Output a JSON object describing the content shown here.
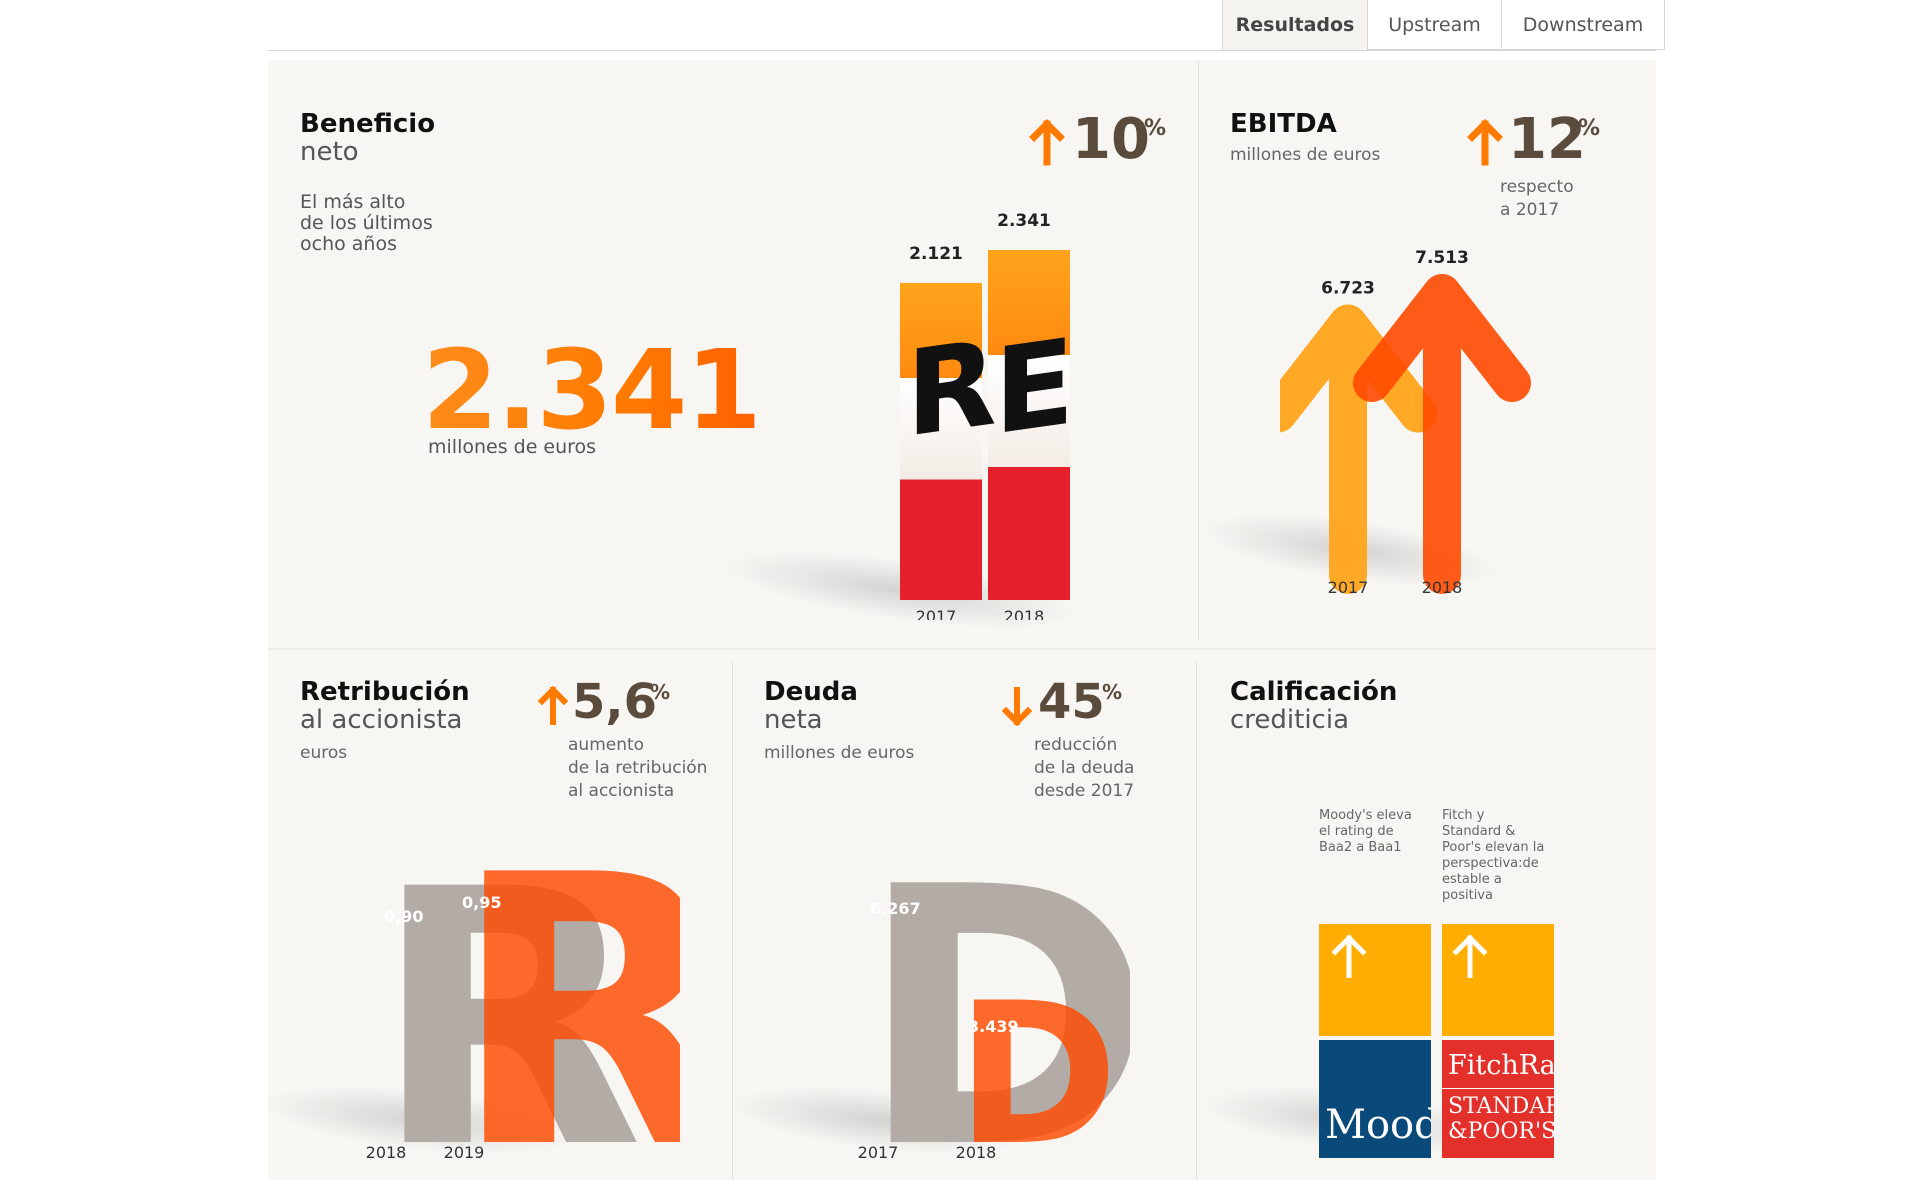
{
  "tabs": [
    {
      "label": "Resultados",
      "active": true
    },
    {
      "label": "Upstream",
      "active": false
    },
    {
      "label": "Downstream",
      "active": false
    }
  ],
  "beneficio": {
    "title": "Beneficio",
    "subtitle": "neto",
    "note": [
      "El más alto",
      "de los últimos",
      "ocho años"
    ],
    "big_value": "2.341",
    "big_unit": "millones de euros",
    "change": {
      "direction": "up",
      "value": "10",
      "symbol": "%"
    },
    "bars": [
      {
        "year": "2017",
        "label": "2.121",
        "value": 2121
      },
      {
        "year": "2018",
        "label": "2.341",
        "value": 2341
      }
    ]
  },
  "ebitda": {
    "title": "EBITDA",
    "unit": "millones de euros",
    "change": {
      "direction": "up",
      "value": "12",
      "symbol": "%",
      "note": [
        "respecto",
        "a 2017"
      ]
    },
    "bars": [
      {
        "year": "2017",
        "label": "6.723",
        "value": 6723
      },
      {
        "year": "2018",
        "label": "7.513",
        "value": 7513
      }
    ]
  },
  "retribucion": {
    "title": "Retribución",
    "subtitle": "al accionista",
    "unit": "euros",
    "change": {
      "direction": "up",
      "value": "5,6",
      "symbol": "%",
      "note": [
        "aumento",
        "de la retribución",
        "al accionista"
      ]
    },
    "bars": [
      {
        "year": "2018",
        "label": "0,90",
        "value": 0.9
      },
      {
        "year": "2019",
        "label": "0,95",
        "value": 0.95
      }
    ]
  },
  "deuda": {
    "title": "Deuda",
    "subtitle": "neta",
    "unit": "millones de euros",
    "change": {
      "direction": "down",
      "value": "45",
      "symbol": "%",
      "note": [
        "reducción",
        "de la deuda",
        "desde 2017"
      ]
    },
    "bars": [
      {
        "year": "2017",
        "label": "6.267",
        "value": 6267
      },
      {
        "year": "2018",
        "label": "3.439",
        "value": 3439
      }
    ]
  },
  "calificacion": {
    "title": "Calificación",
    "subtitle": "crediticia",
    "items": [
      {
        "note": [
          "Moody's eleva",
          "el rating de",
          "Baa2 a Baa1"
        ],
        "logo": "Mood"
      },
      {
        "note": [
          "Fitch y",
          "Standard &",
          "Poor's elevan la",
          "perspectiva:de",
          "estable a",
          "positiva"
        ],
        "logo_top": "FitchRat",
        "logo_bottom": [
          "STANDAR",
          "&POOR'S"
        ]
      }
    ]
  },
  "colors": {
    "orange": "#ff7a00",
    "orange_light": "#ffa41b",
    "red": "#e4212b",
    "gray": "#b3aba5",
    "brown": "#5a4b3d",
    "navy": "#0a4a7a",
    "yellow": "#ffad00"
  }
}
